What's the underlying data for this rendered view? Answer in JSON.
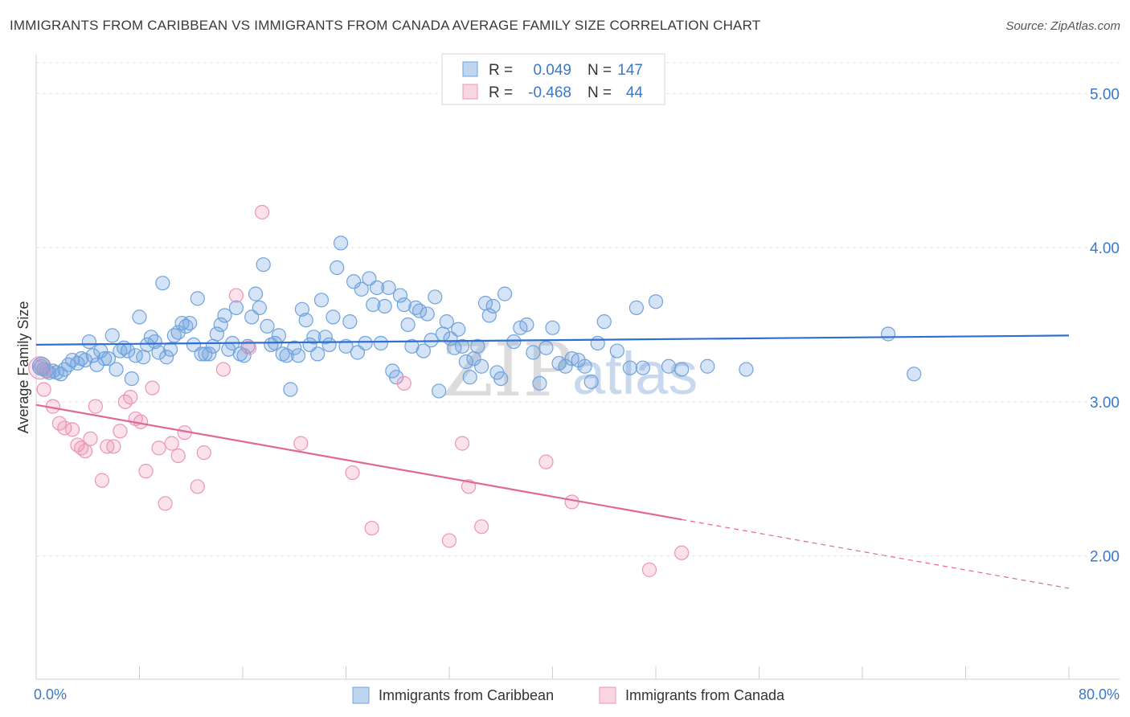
{
  "title": "IMMIGRANTS FROM CARIBBEAN VS IMMIGRANTS FROM CANADA AVERAGE FAMILY SIZE CORRELATION CHART",
  "source": "Source: ZipAtlas.com",
  "watermark": {
    "zip": "ZIP",
    "atlas": "atlas"
  },
  "colors": {
    "blue": "#6fa3dd",
    "blue_line": "#2f6fcf",
    "pink": "#ec95b4",
    "pink_line": "#e0679a",
    "tick_text": "#3b78c9"
  },
  "legend": {
    "rows": [
      {
        "r_label": "R =",
        "r_value": "0.049",
        "n_label": "N =",
        "n_value": "147"
      },
      {
        "r_label": "R =",
        "r_value": "-0.468",
        "n_label": "N =",
        "n_value": "44"
      }
    ]
  },
  "chart_data": {
    "type": "scatter",
    "title": "IMMIGRANTS FROM CARIBBEAN VS IMMIGRANTS FROM CANADA AVERAGE FAMILY SIZE CORRELATION CHART",
    "xlabel": "",
    "ylabel": "Average Family Size",
    "xlim": [
      0,
      80
    ],
    "ylim": [
      1.2,
      5.2
    ],
    "x_tick_labels": [
      "0.0%",
      "80.0%"
    ],
    "y_ticks": [
      2.0,
      3.0,
      4.0,
      5.0
    ],
    "y_tick_labels": [
      "2.00",
      "3.00",
      "4.00",
      "5.00"
    ],
    "grid": true,
    "legend_position": "top-center",
    "series": [
      {
        "name": "Immigrants from Caribbean",
        "color": "#6fa3dd",
        "trend": {
          "x": [
            0,
            80
          ],
          "y": [
            3.37,
            3.43
          ]
        },
        "points": [
          [
            0.4,
            3.23
          ],
          [
            0.6,
            3.21
          ],
          [
            0.8,
            3.2
          ],
          [
            1.0,
            3.19
          ],
          [
            1.3,
            3.2
          ],
          [
            1.6,
            3.19
          ],
          [
            1.9,
            3.18
          ],
          [
            2.2,
            3.21
          ],
          [
            2.5,
            3.24
          ],
          [
            2.8,
            3.27
          ],
          [
            3.2,
            3.25
          ],
          [
            3.5,
            3.28
          ],
          [
            3.8,
            3.27
          ],
          [
            4.1,
            3.39
          ],
          [
            4.4,
            3.3
          ],
          [
            4.7,
            3.24
          ],
          [
            5.0,
            3.33
          ],
          [
            5.3,
            3.28
          ],
          [
            5.6,
            3.28
          ],
          [
            5.9,
            3.43
          ],
          [
            6.2,
            3.21
          ],
          [
            6.5,
            3.33
          ],
          [
            6.8,
            3.35
          ],
          [
            7.1,
            3.33
          ],
          [
            7.4,
            3.15
          ],
          [
            7.7,
            3.3
          ],
          [
            8.0,
            3.55
          ],
          [
            8.3,
            3.29
          ],
          [
            8.6,
            3.37
          ],
          [
            8.9,
            3.42
          ],
          [
            9.2,
            3.39
          ],
          [
            9.5,
            3.32
          ],
          [
            9.8,
            3.77
          ],
          [
            10.1,
            3.29
          ],
          [
            10.4,
            3.34
          ],
          [
            10.7,
            3.43
          ],
          [
            11.0,
            3.45
          ],
          [
            11.3,
            3.51
          ],
          [
            11.6,
            3.49
          ],
          [
            11.9,
            3.51
          ],
          [
            12.2,
            3.37
          ],
          [
            12.5,
            3.67
          ],
          [
            12.8,
            3.31
          ],
          [
            13.1,
            3.31
          ],
          [
            13.4,
            3.31
          ],
          [
            13.7,
            3.36
          ],
          [
            14.0,
            3.44
          ],
          [
            14.3,
            3.5
          ],
          [
            14.6,
            3.56
          ],
          [
            14.9,
            3.34
          ],
          [
            15.2,
            3.38
          ],
          [
            15.5,
            3.61
          ],
          [
            15.8,
            3.31
          ],
          [
            16.1,
            3.3
          ],
          [
            16.4,
            3.36
          ],
          [
            16.7,
            3.55
          ],
          [
            17.0,
            3.7
          ],
          [
            17.3,
            3.61
          ],
          [
            17.6,
            3.89
          ],
          [
            17.9,
            3.49
          ],
          [
            18.2,
            3.37
          ],
          [
            18.5,
            3.38
          ],
          [
            18.8,
            3.43
          ],
          [
            19.1,
            3.31
          ],
          [
            19.4,
            3.3
          ],
          [
            19.7,
            3.08
          ],
          [
            20.0,
            3.35
          ],
          [
            20.3,
            3.3
          ],
          [
            20.6,
            3.6
          ],
          [
            20.9,
            3.53
          ],
          [
            21.2,
            3.37
          ],
          [
            21.5,
            3.42
          ],
          [
            21.8,
            3.31
          ],
          [
            22.1,
            3.66
          ],
          [
            22.4,
            3.42
          ],
          [
            22.7,
            3.37
          ],
          [
            23.0,
            3.55
          ],
          [
            23.3,
            3.87
          ],
          [
            23.6,
            4.03
          ],
          [
            24.0,
            3.36
          ],
          [
            24.3,
            3.52
          ],
          [
            24.6,
            3.78
          ],
          [
            24.9,
            3.32
          ],
          [
            25.2,
            3.73
          ],
          [
            25.5,
            3.38
          ],
          [
            25.8,
            3.8
          ],
          [
            26.1,
            3.63
          ],
          [
            26.4,
            3.74
          ],
          [
            26.7,
            3.38
          ],
          [
            27.0,
            3.62
          ],
          [
            27.3,
            3.74
          ],
          [
            27.6,
            3.2
          ],
          [
            27.9,
            3.16
          ],
          [
            28.2,
            3.69
          ],
          [
            28.5,
            3.63
          ],
          [
            28.8,
            3.5
          ],
          [
            29.1,
            3.36
          ],
          [
            29.4,
            3.61
          ],
          [
            29.7,
            3.59
          ],
          [
            30.0,
            3.33
          ],
          [
            30.3,
            3.57
          ],
          [
            30.6,
            3.4
          ],
          [
            30.9,
            3.68
          ],
          [
            31.2,
            3.07
          ],
          [
            31.5,
            3.44
          ],
          [
            31.8,
            3.52
          ],
          [
            32.1,
            3.41
          ],
          [
            32.4,
            3.35
          ],
          [
            32.7,
            3.47
          ],
          [
            33.0,
            3.36
          ],
          [
            33.3,
            3.26
          ],
          [
            33.6,
            3.16
          ],
          [
            33.9,
            3.28
          ],
          [
            34.2,
            3.36
          ],
          [
            34.5,
            3.23
          ],
          [
            34.8,
            3.64
          ],
          [
            35.1,
            3.56
          ],
          [
            35.4,
            3.62
          ],
          [
            35.7,
            3.19
          ],
          [
            36.0,
            3.15
          ],
          [
            36.3,
            3.7
          ],
          [
            37.0,
            3.39
          ],
          [
            37.5,
            3.48
          ],
          [
            38.0,
            3.5
          ],
          [
            38.5,
            3.32
          ],
          [
            39.0,
            3.12
          ],
          [
            39.5,
            3.35
          ],
          [
            40.0,
            3.48
          ],
          [
            40.5,
            3.25
          ],
          [
            41.0,
            3.23
          ],
          [
            41.5,
            3.28
          ],
          [
            42.0,
            3.27
          ],
          [
            42.5,
            3.23
          ],
          [
            43.0,
            3.13
          ],
          [
            43.5,
            3.38
          ],
          [
            44.0,
            3.52
          ],
          [
            45.0,
            3.33
          ],
          [
            46.0,
            3.22
          ],
          [
            46.5,
            3.61
          ],
          [
            47.0,
            3.22
          ],
          [
            48.0,
            3.65
          ],
          [
            49.0,
            3.23
          ],
          [
            50.0,
            3.21
          ],
          [
            52.0,
            3.23
          ],
          [
            55.0,
            3.21
          ],
          [
            66.0,
            3.44
          ],
          [
            68.0,
            3.18
          ]
        ]
      },
      {
        "name": "Immigrants from Canada",
        "color": "#ec95b4",
        "trend": {
          "x": [
            0,
            80
          ],
          "y": [
            2.98,
            1.79
          ],
          "solid_until": 50
        },
        "points": [
          [
            0.3,
            3.22
          ],
          [
            0.6,
            3.08
          ],
          [
            1.3,
            2.97
          ],
          [
            1.8,
            2.86
          ],
          [
            2.2,
            2.83
          ],
          [
            2.8,
            2.82
          ],
          [
            3.2,
            2.72
          ],
          [
            3.5,
            2.7
          ],
          [
            3.8,
            2.68
          ],
          [
            4.2,
            2.76
          ],
          [
            4.6,
            2.97
          ],
          [
            5.1,
            2.49
          ],
          [
            5.5,
            2.71
          ],
          [
            6.0,
            2.71
          ],
          [
            6.5,
            2.81
          ],
          [
            6.9,
            3.0
          ],
          [
            7.3,
            3.03
          ],
          [
            7.7,
            2.89
          ],
          [
            8.1,
            2.87
          ],
          [
            8.5,
            2.55
          ],
          [
            9.0,
            3.09
          ],
          [
            9.5,
            2.7
          ],
          [
            10.0,
            2.34
          ],
          [
            10.5,
            2.73
          ],
          [
            11.0,
            2.65
          ],
          [
            11.5,
            2.8
          ],
          [
            12.5,
            2.45
          ],
          [
            13.0,
            2.67
          ],
          [
            14.5,
            3.21
          ],
          [
            15.5,
            3.69
          ],
          [
            16.5,
            3.35
          ],
          [
            17.5,
            4.23
          ],
          [
            20.5,
            2.73
          ],
          [
            24.5,
            2.54
          ],
          [
            26.0,
            2.18
          ],
          [
            28.5,
            3.12
          ],
          [
            32.0,
            2.1
          ],
          [
            33.0,
            2.73
          ],
          [
            33.5,
            2.45
          ],
          [
            34.5,
            2.19
          ],
          [
            39.5,
            2.61
          ],
          [
            41.5,
            2.35
          ],
          [
            47.5,
            1.91
          ],
          [
            50.0,
            2.02
          ]
        ]
      }
    ]
  },
  "bottom_legend": [
    {
      "label": "Immigrants from Caribbean"
    },
    {
      "label": "Immigrants from Canada"
    }
  ]
}
